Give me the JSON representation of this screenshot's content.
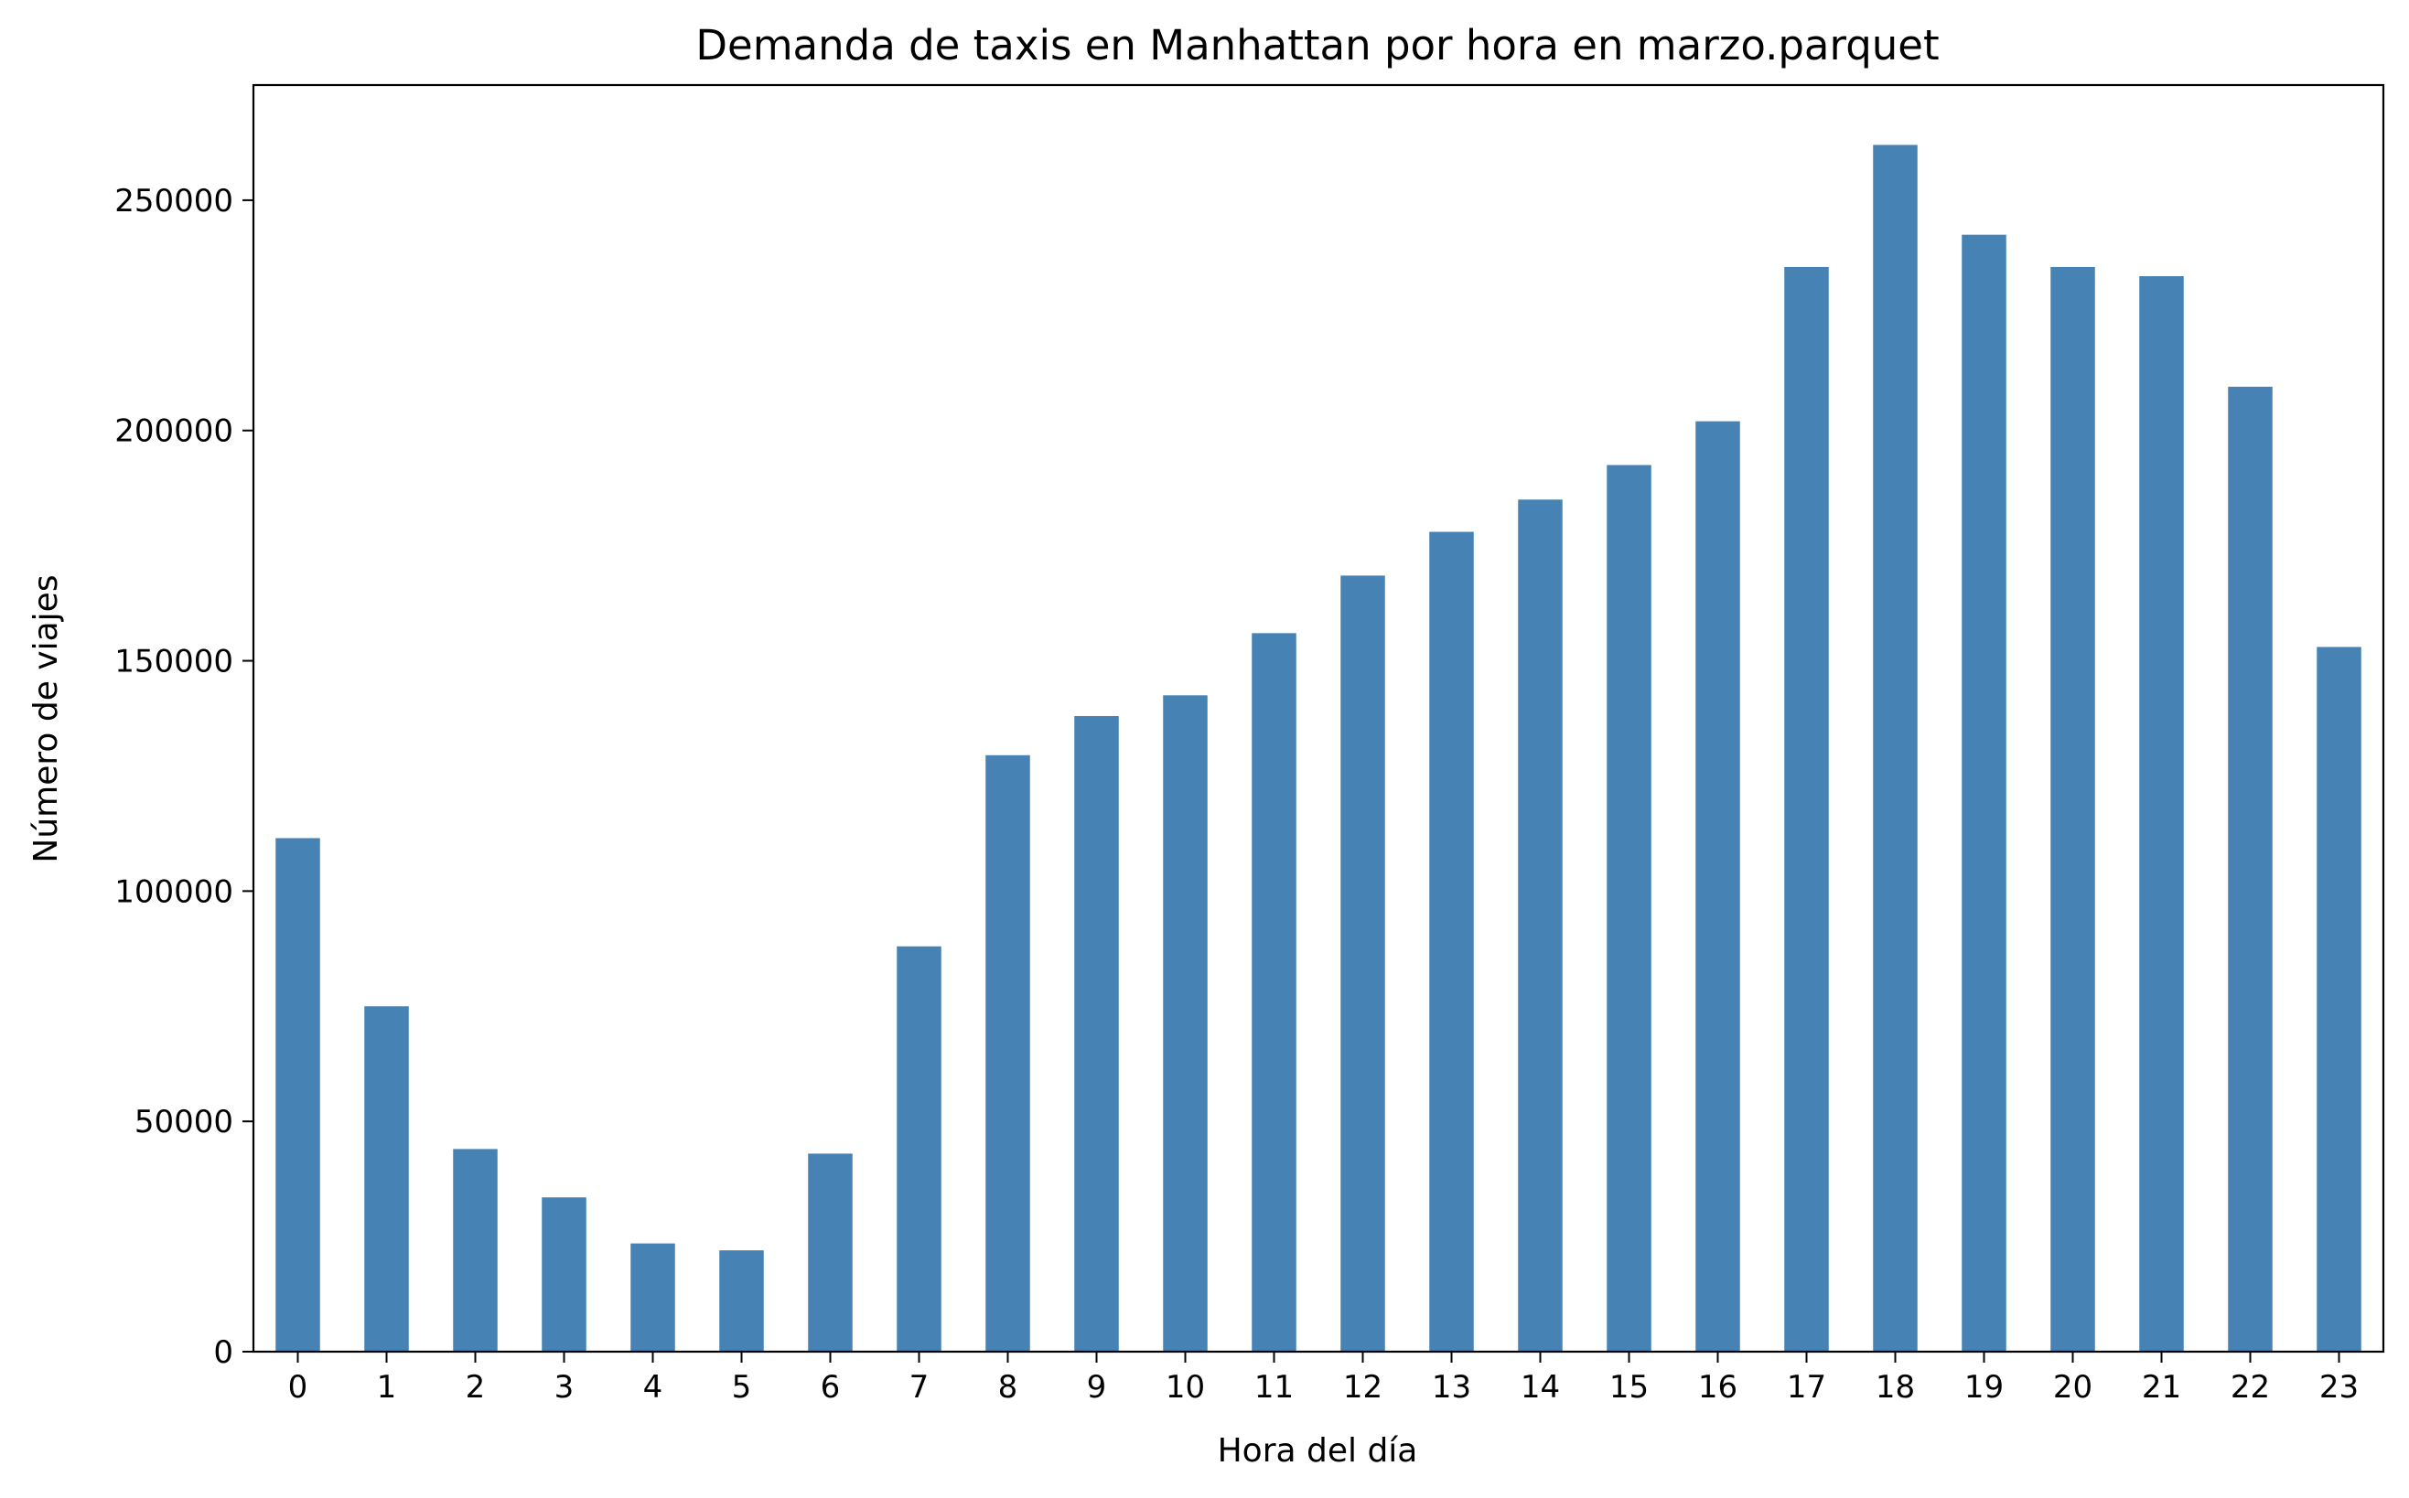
{
  "chart_data": {
    "type": "bar",
    "title": "Demanda de taxis en Manhattan por hora en marzo.parquet",
    "xlabel": "Hora del día",
    "ylabel": "Número de viajes",
    "categories": [
      "0",
      "1",
      "2",
      "3",
      "4",
      "5",
      "6",
      "7",
      "8",
      "9",
      "10",
      "11",
      "12",
      "13",
      "14",
      "15",
      "16",
      "17",
      "18",
      "19",
      "20",
      "21",
      "22",
      "23"
    ],
    "values": [
      111500,
      75000,
      44000,
      33500,
      23500,
      22000,
      43000,
      88000,
      129500,
      138000,
      142500,
      156000,
      168500,
      178000,
      185000,
      192500,
      202000,
      235500,
      262000,
      242500,
      235500,
      233500,
      209500,
      153000
    ],
    "ylim": [
      0,
      275000
    ],
    "yticks": [
      0,
      50000,
      100000,
      150000,
      200000,
      250000
    ],
    "bar_color": "#4682b4",
    "grid": false,
    "legend": false
  }
}
